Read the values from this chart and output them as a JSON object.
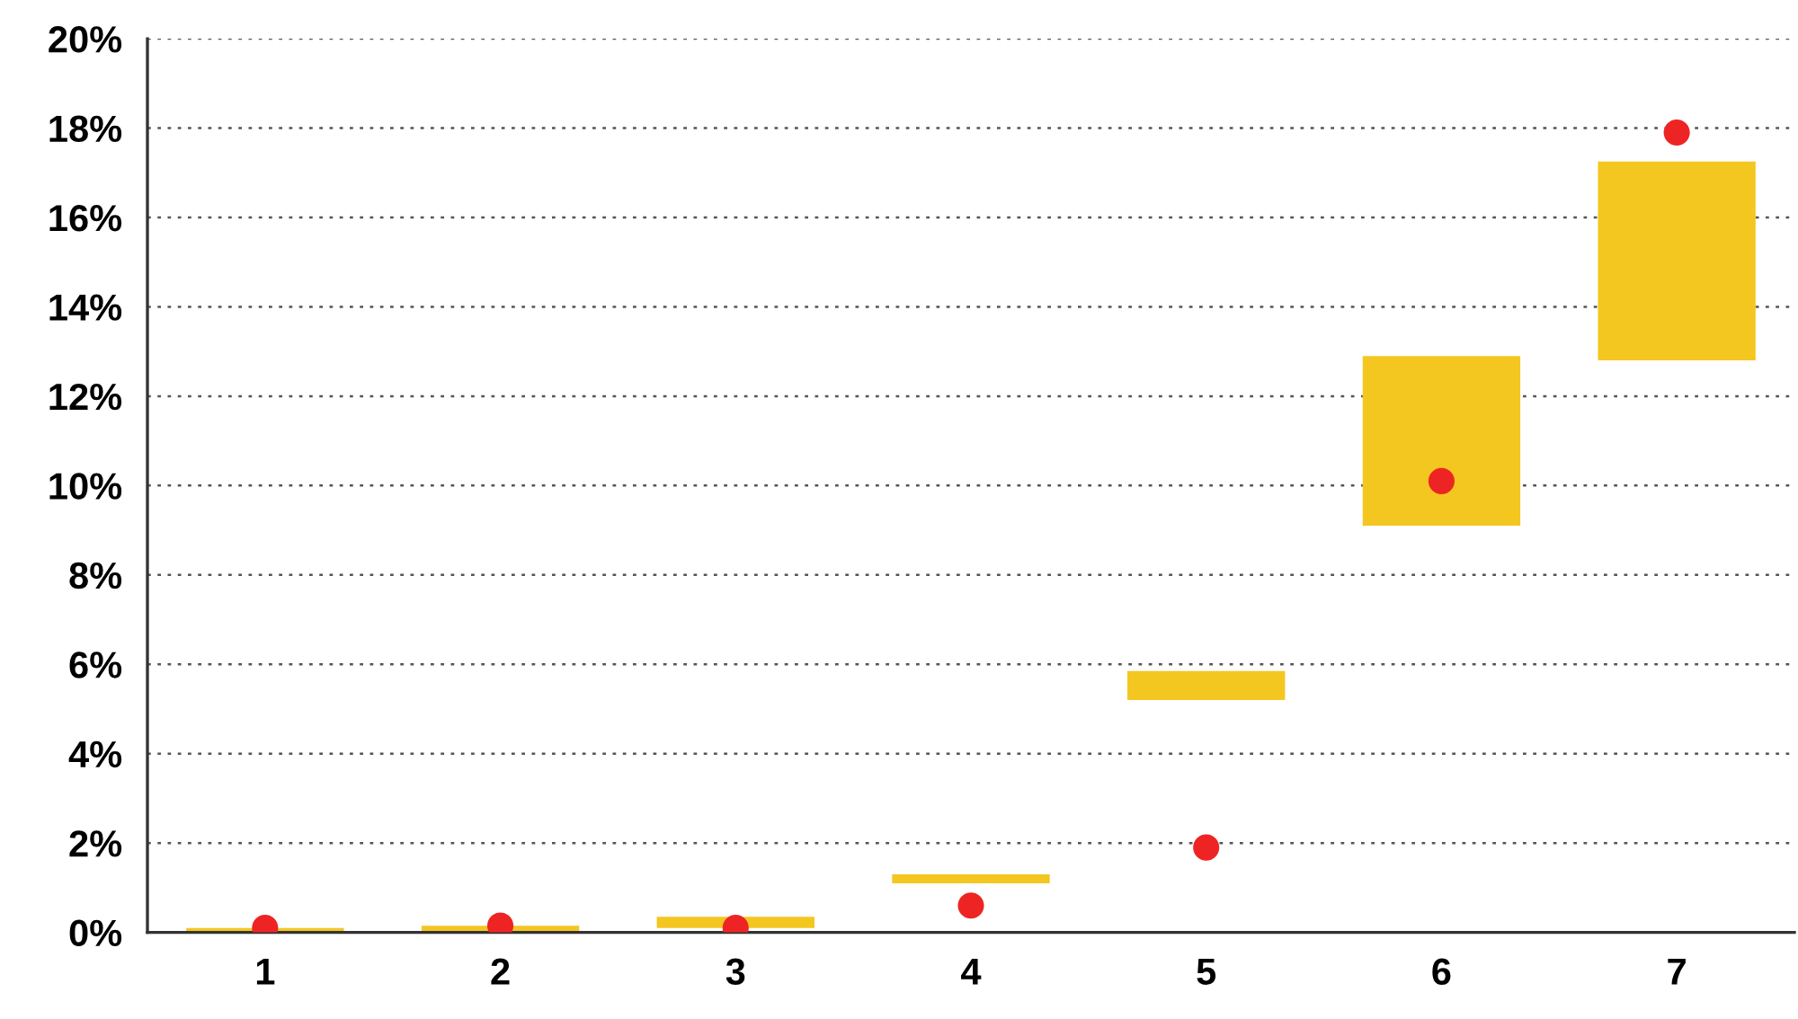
{
  "chart_data": {
    "type": "bar",
    "categories": [
      "1",
      "2",
      "3",
      "4",
      "5",
      "6",
      "7"
    ],
    "series": [
      {
        "color": "#f4c620",
        "base": [
          0,
          0,
          0.1,
          1.1,
          5.2,
          9.1,
          12.8
        ],
        "values": [
          0.1,
          0.15,
          0.25,
          0.2,
          0.65,
          3.8,
          4.45
        ]
      },
      {
        "type": "scatter",
        "color": "#ee2424",
        "x": [
          "1",
          "2",
          "3",
          "4",
          "5",
          "6",
          "7"
        ],
        "values": [
          0.1,
          0.15,
          0.1,
          0.6,
          1.9,
          10.1,
          17.9
        ]
      }
    ],
    "ylim": [
      0,
      20
    ],
    "yticks": [
      {
        "value": 0,
        "label": "0%"
      },
      {
        "value": 2,
        "label": "2%"
      },
      {
        "value": 4,
        "label": "4%"
      },
      {
        "value": 6,
        "label": "6%"
      },
      {
        "value": 8,
        "label": "8%"
      },
      {
        "value": 10,
        "label": "10%"
      },
      {
        "value": 12,
        "label": "12%"
      },
      {
        "value": 14,
        "label": "14%"
      },
      {
        "value": 16,
        "label": "16%"
      },
      {
        "value": 18,
        "label": "18%"
      },
      {
        "value": 20,
        "label": "20%"
      }
    ],
    "grid": "y",
    "marker": "circle",
    "legend": false
  }
}
